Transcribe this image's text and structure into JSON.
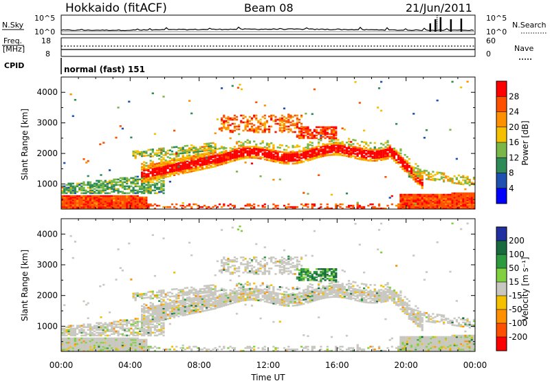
{
  "header": {
    "station": "Hokkaido (fitACF)",
    "beam": "Beam 08",
    "date": "21/Jun/2011"
  },
  "top_panels": {
    "nsky_label": "N.Sky",
    "nsearch_label": "N.Search",
    "nsky_ticks": [
      "10^5",
      "10^0"
    ],
    "nsearch_ticks": [
      "10^5",
      "10^0"
    ],
    "freq_label": "Freq.",
    "freq_unit": "[MHz]",
    "freq_ticks": [
      "18",
      "8"
    ],
    "nave_label": "Nave",
    "nave_ticks": [
      "60",
      "0"
    ],
    "cpid_label": "CPID",
    "cpid_text": "normal (fast) 151"
  },
  "chart_data": [
    {
      "type": "heatmap",
      "title": "",
      "xlabel": "Time UT",
      "ylabel": "Slant Range [km]",
      "x_ticks": [
        "00:00",
        "04:00",
        "08:00",
        "12:00",
        "16:00",
        "20:00",
        "00:00"
      ],
      "y_ticks": [
        "1000",
        "2000",
        "3000",
        "4000"
      ],
      "xlim": [
        0,
        24
      ],
      "ylim": [
        180,
        4500
      ],
      "colorbar": {
        "label": "Power [dB]",
        "ticks": [
          "28",
          "24",
          "20",
          "16",
          "12",
          "8",
          "4"
        ],
        "colors": [
          "#ff0000",
          "#ff5000",
          "#ff9000",
          "#f5c000",
          "#7ab648",
          "#2e8b57",
          "#2050b0",
          "#0000ff"
        ]
      },
      "features": [
        {
          "range_km": [
            200,
            650
          ],
          "time_h": [
            0,
            24
          ],
          "dB": 28
        },
        {
          "range_km": [
            1700,
            2300
          ],
          "time_h": [
            4.5,
            21
          ],
          "dB": 28
        },
        {
          "range_km": [
            2600,
            3300
          ],
          "time_h": [
            9,
            14
          ],
          "dB": 24
        }
      ]
    },
    {
      "type": "heatmap",
      "title": "",
      "xlabel": "Time UT",
      "ylabel": "Slant Range [km]",
      "x_ticks": [
        "00:00",
        "04:00",
        "08:00",
        "12:00",
        "16:00",
        "20:00",
        "00:00"
      ],
      "y_ticks": [
        "1000",
        "2000",
        "3000",
        "4000"
      ],
      "xlim": [
        0,
        24
      ],
      "ylim": [
        180,
        4500
      ],
      "colorbar": {
        "label": "Velocity [m s⁻¹]",
        "ticks": [
          "200",
          "100",
          "50",
          "15",
          "-15",
          "-50",
          "-100",
          "-200"
        ],
        "colors": [
          "#2030a0",
          "#1a6a40",
          "#2e9a40",
          "#80d040",
          "#c8c8c0",
          "#f5c000",
          "#ff9000",
          "#ff5000",
          "#ff0000"
        ]
      },
      "features": [
        {
          "range_km": [
            200,
            900
          ],
          "time_h": [
            0,
            24
          ],
          "m_s": 0
        },
        {
          "range_km": [
            1700,
            2300
          ],
          "time_h": [
            4.5,
            21
          ],
          "m_s": 0
        },
        {
          "range_km": [
            2500,
            2900
          ],
          "time_h": [
            13.5,
            16
          ],
          "m_s": 60
        }
      ]
    }
  ]
}
